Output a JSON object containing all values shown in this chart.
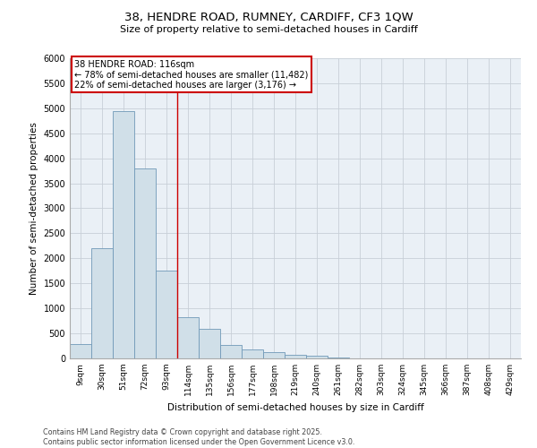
{
  "title_line1": "38, HENDRE ROAD, RUMNEY, CARDIFF, CF3 1QW",
  "title_line2": "Size of property relative to semi-detached houses in Cardiff",
  "xlabel": "Distribution of semi-detached houses by size in Cardiff",
  "ylabel": "Number of semi-detached properties",
  "categories": [
    "9sqm",
    "30sqm",
    "51sqm",
    "72sqm",
    "93sqm",
    "114sqm",
    "135sqm",
    "156sqm",
    "177sqm",
    "198sqm",
    "219sqm",
    "240sqm",
    "261sqm",
    "282sqm",
    "303sqm",
    "324sqm",
    "345sqm",
    "366sqm",
    "387sqm",
    "408sqm",
    "429sqm"
  ],
  "values": [
    280,
    2200,
    4950,
    3800,
    1750,
    820,
    600,
    260,
    175,
    120,
    80,
    50,
    20,
    8,
    5,
    3,
    1,
    0,
    0,
    0,
    0
  ],
  "bar_color": "#d0dfe8",
  "bar_edge_color": "#7099b8",
  "vline_x": 4.5,
  "vline_color": "#cc0000",
  "highlight_label": "38 HENDRE ROAD: 116sqm",
  "annotation_line1": "← 78% of semi-detached houses are smaller (11,482)",
  "annotation_line2": "22% of semi-detached houses are larger (3,176) →",
  "ylim": [
    0,
    6000
  ],
  "yticks": [
    0,
    500,
    1000,
    1500,
    2000,
    2500,
    3000,
    3500,
    4000,
    4500,
    5000,
    5500,
    6000
  ],
  "grid_color": "#c8cfd8",
  "background_color": "#eaf0f6",
  "footer_line1": "Contains HM Land Registry data © Crown copyright and database right 2025.",
  "footer_line2": "Contains public sector information licensed under the Open Government Licence v3.0."
}
